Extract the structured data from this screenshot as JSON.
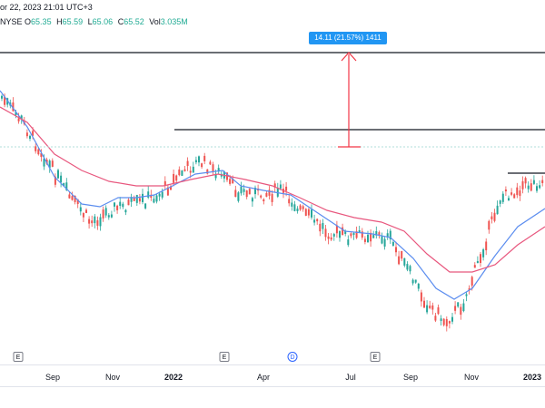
{
  "header": {
    "title_fragment": "or 22, 2023 21:01 UTC+3",
    "symbol_fragment": "NYSE",
    "ohlc": [
      {
        "key": "O",
        "value": "65.35"
      },
      {
        "key": "H",
        "value": "65.59"
      },
      {
        "key": "L",
        "value": "65.06"
      },
      {
        "key": "C",
        "value": "65.52"
      },
      {
        "key": "Vol",
        "value": "3.035M"
      }
    ]
  },
  "measure_tool": {
    "label": "14.11 (21.57%) 1411",
    "accent_color": "#f23645"
  },
  "time_axis": {
    "labels": [
      {
        "text": "Sep",
        "bold": false
      },
      {
        "text": "Nov",
        "bold": false
      },
      {
        "text": "2022",
        "bold": true
      },
      {
        "text": "Apr",
        "bold": false
      },
      {
        "text": "Jul",
        "bold": false
      },
      {
        "text": "Sep",
        "bold": false
      },
      {
        "text": "Nov",
        "bold": false
      },
      {
        "text": "2023",
        "bold": true
      }
    ]
  },
  "event_markers": [
    {
      "text": "E",
      "type": "earnings"
    },
    {
      "text": "E",
      "type": "earnings"
    },
    {
      "text": "D",
      "type": "dividend"
    },
    {
      "text": "E",
      "type": "earnings"
    }
  ],
  "colors": {
    "up_candle": "#26a69a",
    "down_candle": "#ef5350",
    "fast_ma": "#5b8def",
    "slow_ma": "#e8577e",
    "horizontal_lines": "#131722",
    "measure_label_bg": "#2196f3",
    "dotted_level": "#b2dfdb"
  }
}
